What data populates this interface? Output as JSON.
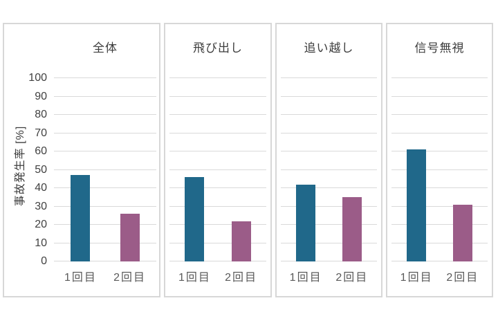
{
  "chart_data": {
    "type": "bar",
    "title": "",
    "ylabel": "事故発生率 [%]",
    "xlabel": "",
    "ylim": [
      0,
      100
    ],
    "ytick_step": 10,
    "yticks": [
      0,
      10,
      20,
      30,
      40,
      50,
      60,
      70,
      80,
      90,
      100
    ],
    "grid": true,
    "legend_position": "none",
    "categories": [
      "1回目",
      "2回目"
    ],
    "category_colors": [
      "#20688a",
      "#9b5c88"
    ],
    "panels": [
      {
        "title": "全体",
        "values": [
          47,
          26
        ]
      },
      {
        "title": "飛び出し",
        "values": [
          46,
          22
        ]
      },
      {
        "title": "追い越し",
        "values": [
          42,
          35
        ]
      },
      {
        "title": "信号無視",
        "values": [
          61,
          31
        ]
      }
    ]
  },
  "colors": {
    "bar_first": "#20688a",
    "bar_second": "#9b5c88",
    "gridline": "#d9d9d9",
    "panel_border": "#d7d7d7",
    "title_text": "#3c3c3c",
    "tick_text": "#404040",
    "x_label_text": "#595959",
    "background": "#ffffff"
  }
}
